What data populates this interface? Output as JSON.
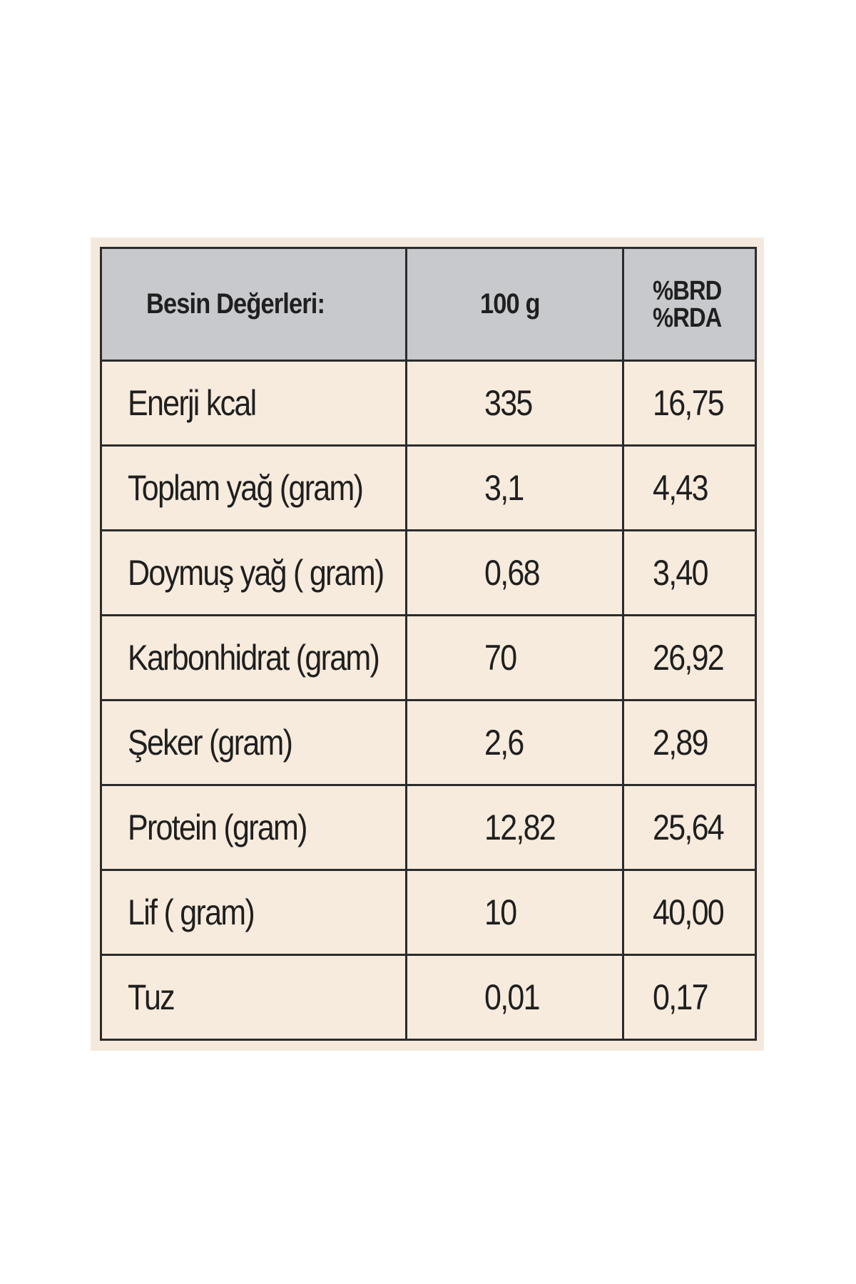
{
  "table": {
    "headers": {
      "name": "Besin Değerleri:",
      "amount": "100 g",
      "rda_line1": "%BRD",
      "rda_line2": "%RDA"
    },
    "rows": [
      {
        "name": "Enerji kcal",
        "amount": "335",
        "rda": "16,75"
      },
      {
        "name": "Toplam yağ (gram)",
        "amount": "3,1",
        "rda": "4,43"
      },
      {
        "name": "Doymuş yağ ( gram)",
        "amount": "0,68",
        "rda": "3,40"
      },
      {
        "name": "Karbonhidrat (gram)",
        "amount": "70",
        "rda": "26,92"
      },
      {
        "name": "Şeker (gram)",
        "amount": "2,6",
        "rda": "2,89"
      },
      {
        "name": "Protein (gram)",
        "amount": "12,82",
        "rda": "25,64"
      },
      {
        "name": "Lif ( gram)",
        "amount": "10",
        "rda": "40,00"
      },
      {
        "name": "Tuz",
        "amount": "0,01",
        "rda": "0,17"
      }
    ]
  }
}
